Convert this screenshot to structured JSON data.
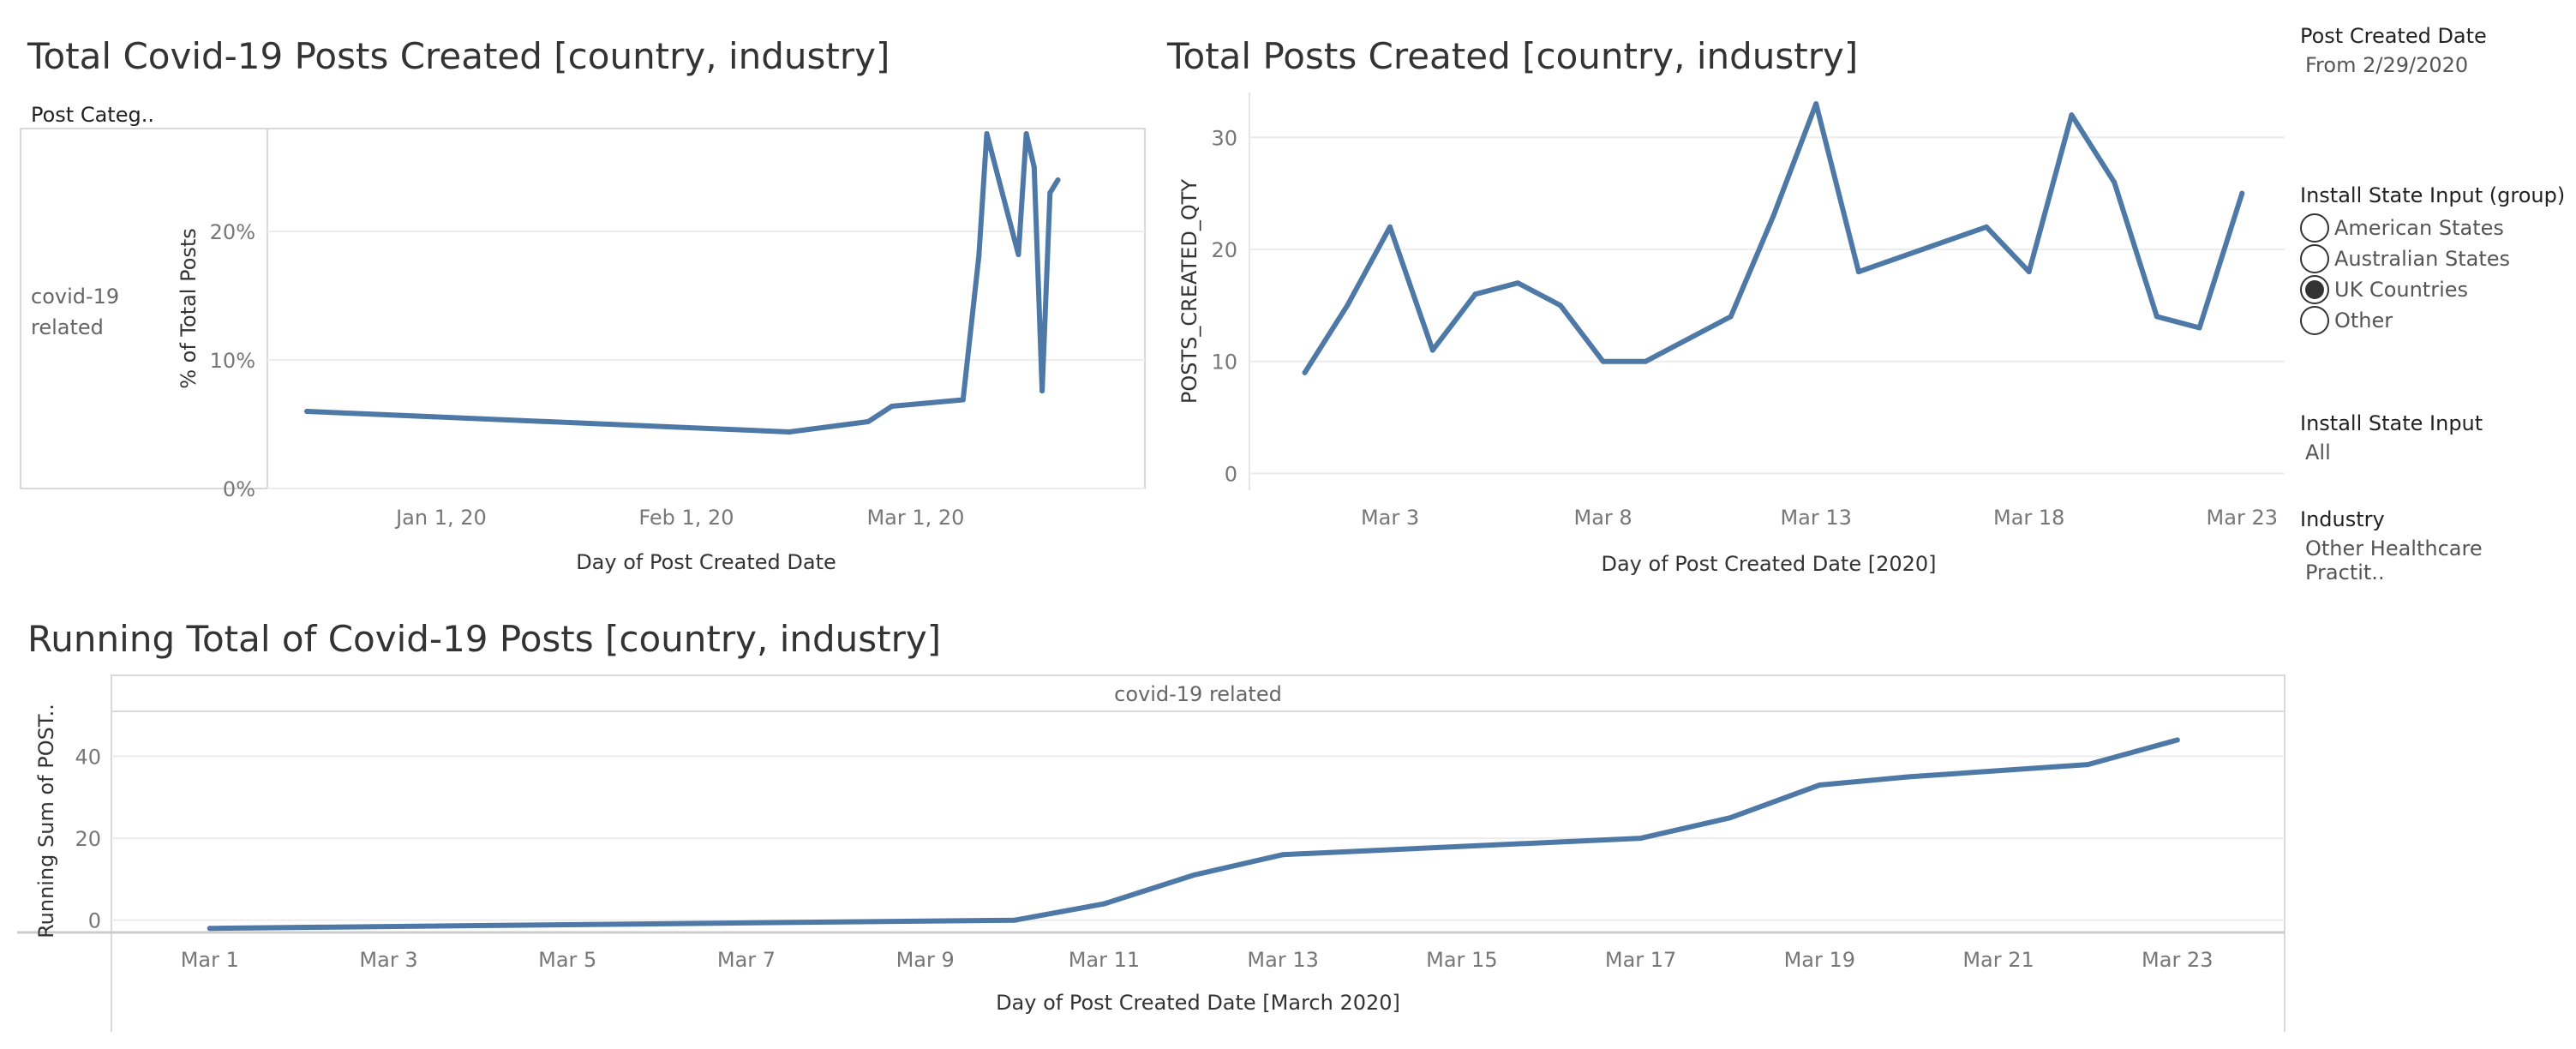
{
  "chart_data": [
    {
      "type": "line",
      "id": "pct",
      "title": "Total Covid-19 Posts Created [country, industry]",
      "row_header": "Post Categ..",
      "row_label": [
        "covid-19",
        "related"
      ],
      "xlabel": "Day of Post Created Date",
      "ylabel": "% of Total Posts",
      "x_ticks": [
        {
          "label": "Jan 1, 20",
          "day": 1
        },
        {
          "label": "Feb 1, 20",
          "day": 32
        },
        {
          "label": "Mar 1, 20",
          "day": 61
        }
      ],
      "y_ticks": [
        {
          "label": "0%",
          "value": 0
        },
        {
          "label": "10%",
          "value": 10
        },
        {
          "label": "20%",
          "value": 20
        }
      ],
      "xlim": [
        -21,
        90
      ],
      "ylim": [
        0,
        28
      ],
      "x_day": [
        -16,
        45,
        55,
        58,
        67,
        69,
        70,
        74,
        75,
        76,
        77,
        78,
        79
      ],
      "values": [
        6.0,
        4.4,
        5.2,
        6.4,
        6.9,
        18.1,
        27.6,
        18.2,
        27.6,
        25.0,
        7.6,
        23.0,
        24.0
      ],
      "color": "#4e79a7"
    },
    {
      "type": "line",
      "id": "total",
      "title": "Total Posts Created [country, industry]",
      "xlabel": "Day of Post Created Date [2020]",
      "ylabel": "POSTS_CREATED_QTY",
      "x_ticks": [
        {
          "label": "Mar 3",
          "day": 3
        },
        {
          "label": "Mar 8",
          "day": 8
        },
        {
          "label": "Mar 13",
          "day": 13
        },
        {
          "label": "Mar 18",
          "day": 18
        },
        {
          "label": "Mar 23",
          "day": 23
        }
      ],
      "y_ticks": [
        {
          "label": "0",
          "value": 0
        },
        {
          "label": "10",
          "value": 10
        },
        {
          "label": "20",
          "value": 20
        },
        {
          "label": "30",
          "value": 30
        }
      ],
      "xlim": [
        -0.3,
        24
      ],
      "ylim": [
        -1.5,
        34
      ],
      "x_day": [
        1,
        2,
        3,
        4,
        5,
        6,
        7,
        8,
        9,
        10,
        11,
        12,
        13,
        14,
        17,
        18,
        19,
        20,
        21,
        22,
        23
      ],
      "values": [
        9,
        15,
        22,
        11,
        16,
        17,
        15,
        10,
        10,
        12,
        14,
        23,
        33,
        18,
        22,
        18,
        32,
        26,
        14,
        13,
        25
      ],
      "color": "#4e79a7"
    },
    {
      "type": "line",
      "id": "running",
      "title": "Running Total of Covid-19 Posts [country, industry]",
      "column_header": "covid-19 related",
      "xlabel": "Day of Post Created Date [March 2020]",
      "ylabel": "Running Sum of POST..",
      "x_ticks": [
        {
          "label": "Mar 1",
          "day": 1
        },
        {
          "label": "Mar 3",
          "day": 3
        },
        {
          "label": "Mar 5",
          "day": 5
        },
        {
          "label": "Mar 7",
          "day": 7
        },
        {
          "label": "Mar 9",
          "day": 9
        },
        {
          "label": "Mar 11",
          "day": 11
        },
        {
          "label": "Mar 13",
          "day": 13
        },
        {
          "label": "Mar 15",
          "day": 15
        },
        {
          "label": "Mar 17",
          "day": 17
        },
        {
          "label": "Mar 19",
          "day": 19
        },
        {
          "label": "Mar 21",
          "day": 21
        },
        {
          "label": "Mar 23",
          "day": 23
        }
      ],
      "y_ticks": [
        {
          "label": "0",
          "value": 0
        },
        {
          "label": "20",
          "value": 20
        },
        {
          "label": "40",
          "value": 40
        }
      ],
      "xlim": [
        -0.1,
        24.2
      ],
      "ylim": [
        -3,
        51
      ],
      "x_day": [
        1,
        10,
        11,
        12,
        13,
        17,
        18,
        19,
        20,
        22,
        23
      ],
      "values": [
        -2,
        0,
        4,
        11,
        16,
        20,
        25,
        33,
        35,
        38,
        44
      ],
      "color": "#4e79a7"
    }
  ],
  "filters": {
    "post_created_date": {
      "title": "Post Created Date",
      "value": "From 2/29/2020"
    },
    "install_state_group": {
      "title": "Install State Input (group)",
      "options": [
        {
          "label": "American States",
          "selected": false
        },
        {
          "label": "Australian States",
          "selected": false
        },
        {
          "label": "UK Countries",
          "selected": true
        },
        {
          "label": "Other",
          "selected": false
        }
      ]
    },
    "install_state": {
      "title": "Install State Input",
      "value": "All"
    },
    "industry": {
      "title": "Industry",
      "value": "Other Healthcare Practit.."
    }
  }
}
